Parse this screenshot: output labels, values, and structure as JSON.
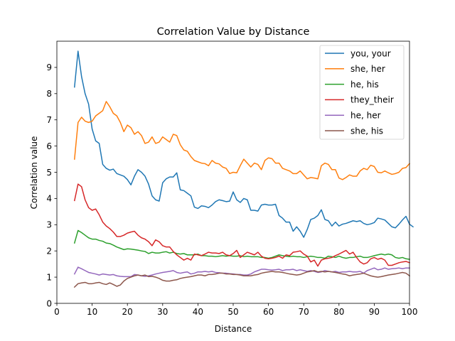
{
  "chart_data": {
    "type": "line",
    "title": "Correlation Value by Distance",
    "xlabel": "Distance",
    "ylabel": "Correlation value",
    "xlim": [
      0,
      100
    ],
    "ylim": [
      0,
      10
    ],
    "xticks": [
      0,
      10,
      20,
      30,
      40,
      50,
      60,
      70,
      80,
      90,
      100
    ],
    "yticks": [
      0,
      1,
      2,
      3,
      4,
      5,
      6,
      7,
      8,
      9
    ],
    "grid": false,
    "legend_position": "top-right",
    "x_start": 5,
    "x_step": 1,
    "series": [
      {
        "name": "you, your",
        "color": "#1f77b4",
        "values": [
          8.25,
          9.62,
          8.65,
          8.0,
          7.6,
          6.65,
          6.2,
          6.1,
          5.3,
          5.15,
          5.08,
          5.12,
          4.95,
          4.9,
          4.85,
          4.72,
          4.52,
          4.85,
          5.1,
          5.0,
          4.85,
          4.55,
          4.1,
          3.95,
          3.9,
          4.6,
          4.75,
          4.82,
          4.82,
          4.98,
          4.33,
          4.3,
          4.2,
          4.1,
          3.67,
          3.62,
          3.72,
          3.7,
          3.65,
          3.75,
          3.88,
          3.95,
          3.92,
          3.88,
          3.9,
          4.25,
          3.95,
          3.85,
          4.0,
          3.95,
          3.55,
          3.55,
          3.52,
          3.75,
          3.78,
          3.75,
          3.75,
          3.78,
          3.35,
          3.25,
          3.1,
          3.1,
          2.75,
          2.92,
          2.75,
          2.52,
          2.82,
          3.2,
          3.25,
          3.35,
          3.57,
          3.2,
          3.15,
          2.95,
          3.1,
          2.95,
          3.02,
          3.05,
          3.1,
          3.15,
          3.12,
          3.15,
          3.05,
          3.0,
          3.03,
          3.08,
          3.25,
          3.22,
          3.18,
          3.05,
          2.92,
          2.88,
          3.02,
          3.18,
          3.32,
          3.02,
          2.92
        ]
      },
      {
        "name": "she, her",
        "color": "#ff7f0e",
        "values": [
          5.5,
          6.9,
          7.1,
          6.95,
          6.9,
          6.95,
          7.15,
          7.25,
          7.35,
          7.7,
          7.5,
          7.25,
          7.15,
          6.9,
          6.55,
          6.8,
          6.7,
          6.45,
          6.55,
          6.4,
          6.1,
          6.15,
          6.35,
          6.1,
          6.15,
          6.35,
          6.25,
          6.15,
          6.45,
          6.4,
          6.05,
          5.85,
          5.8,
          5.6,
          5.45,
          5.4,
          5.35,
          5.33,
          5.25,
          5.45,
          5.35,
          5.32,
          5.2,
          5.15,
          4.95,
          5.0,
          4.98,
          5.25,
          5.5,
          5.35,
          5.2,
          5.35,
          5.3,
          5.1,
          5.45,
          5.55,
          5.52,
          5.35,
          5.35,
          5.15,
          5.1,
          5.05,
          4.95,
          4.95,
          5.05,
          4.9,
          4.75,
          4.8,
          4.78,
          4.75,
          5.25,
          5.35,
          5.3,
          5.1,
          5.1,
          4.78,
          4.72,
          4.8,
          4.9,
          4.85,
          4.85,
          5.05,
          5.15,
          5.1,
          5.27,
          5.22,
          5.0,
          4.98,
          5.05,
          4.98,
          4.92,
          4.95,
          5.0,
          5.15,
          5.18,
          5.33
        ]
      },
      {
        "name": "he, his",
        "color": "#2ca02c",
        "values": [
          2.3,
          2.78,
          2.7,
          2.6,
          2.5,
          2.45,
          2.45,
          2.4,
          2.37,
          2.3,
          2.28,
          2.22,
          2.15,
          2.1,
          2.05,
          2.08,
          2.07,
          2.05,
          2.03,
          2.0,
          1.98,
          1.9,
          1.95,
          1.92,
          1.92,
          1.95,
          1.97,
          1.92,
          1.95,
          1.9,
          1.88,
          1.9,
          1.85,
          1.85,
          1.85,
          1.88,
          1.82,
          1.82,
          1.8,
          1.8,
          1.78,
          1.8,
          1.82,
          1.8,
          1.82,
          1.8,
          1.8,
          1.82,
          1.78,
          1.8,
          1.78,
          1.78,
          1.78,
          1.75,
          1.75,
          1.72,
          1.75,
          1.8,
          1.85,
          1.82,
          1.8,
          1.78,
          1.8,
          1.78,
          1.78,
          1.75,
          1.78,
          1.8,
          1.78,
          1.75,
          1.75,
          1.72,
          1.8,
          1.78,
          1.75,
          1.8,
          1.75,
          1.72,
          1.75,
          1.75,
          1.78,
          1.8,
          1.75,
          1.75,
          1.78,
          1.82,
          1.85,
          1.88,
          1.85,
          1.88,
          1.85,
          1.75,
          1.72,
          1.75,
          1.7,
          1.68
        ]
      },
      {
        "name": "they_their",
        "color": "#d62728",
        "values": [
          3.92,
          4.55,
          4.45,
          3.95,
          3.65,
          3.55,
          3.6,
          3.38,
          3.1,
          2.95,
          2.85,
          2.72,
          2.55,
          2.55,
          2.6,
          2.68,
          2.72,
          2.75,
          2.6,
          2.5,
          2.45,
          2.35,
          2.2,
          2.42,
          2.35,
          2.2,
          2.15,
          2.15,
          1.98,
          1.85,
          1.75,
          1.65,
          1.72,
          1.65,
          1.88,
          1.85,
          1.82,
          1.88,
          1.95,
          1.92,
          1.92,
          1.9,
          1.95,
          1.85,
          1.82,
          1.9,
          2.02,
          1.75,
          1.85,
          1.95,
          1.9,
          1.85,
          1.95,
          1.8,
          1.72,
          1.7,
          1.72,
          1.75,
          1.8,
          1.72,
          1.85,
          1.82,
          1.95,
          1.97,
          2.0,
          1.88,
          1.8,
          1.58,
          1.65,
          1.42,
          1.65,
          1.7,
          1.72,
          1.75,
          1.82,
          1.88,
          1.95,
          2.02,
          1.88,
          1.95,
          1.75,
          1.58,
          1.5,
          1.55,
          1.7,
          1.75,
          1.68,
          1.72,
          1.65,
          1.45,
          1.45,
          1.5,
          1.55,
          1.58,
          1.6,
          1.55
        ]
      },
      {
        "name": "he, her",
        "color": "#9467bd",
        "values": [
          1.12,
          1.38,
          1.32,
          1.25,
          1.18,
          1.15,
          1.12,
          1.08,
          1.12,
          1.1,
          1.08,
          1.1,
          1.05,
          1.03,
          1.02,
          1.02,
          1.02,
          1.1,
          1.08,
          1.05,
          1.03,
          1.05,
          1.08,
          1.12,
          1.15,
          1.18,
          1.2,
          1.22,
          1.25,
          1.18,
          1.15,
          1.18,
          1.2,
          1.12,
          1.15,
          1.2,
          1.2,
          1.22,
          1.2,
          1.22,
          1.18,
          1.17,
          1.15,
          1.15,
          1.13,
          1.12,
          1.1,
          1.1,
          1.08,
          1.08,
          1.12,
          1.2,
          1.25,
          1.3,
          1.3,
          1.28,
          1.27,
          1.28,
          1.3,
          1.25,
          1.28,
          1.28,
          1.3,
          1.25,
          1.28,
          1.25,
          1.22,
          1.25,
          1.22,
          1.18,
          1.2,
          1.25,
          1.22,
          1.2,
          1.22,
          1.18,
          1.2,
          1.2,
          1.22,
          1.2,
          1.2,
          1.22,
          1.15,
          1.25,
          1.3,
          1.35,
          1.28,
          1.3,
          1.35,
          1.3,
          1.32,
          1.33,
          1.35,
          1.32,
          1.35,
          1.35
        ]
      },
      {
        "name": "she, his",
        "color": "#8c564b",
        "values": [
          0.62,
          0.75,
          0.78,
          0.8,
          0.75,
          0.75,
          0.78,
          0.8,
          0.75,
          0.72,
          0.78,
          0.72,
          0.65,
          0.7,
          0.85,
          0.95,
          1.0,
          1.05,
          1.08,
          1.05,
          1.08,
          1.02,
          1.03,
          1.0,
          0.95,
          0.88,
          0.85,
          0.85,
          0.88,
          0.9,
          0.95,
          0.98,
          1.0,
          1.02,
          1.05,
          1.08,
          1.08,
          1.05,
          1.1,
          1.1,
          1.12,
          1.15,
          1.15,
          1.12,
          1.12,
          1.1,
          1.1,
          1.08,
          1.05,
          1.05,
          1.05,
          1.08,
          1.1,
          1.15,
          1.18,
          1.2,
          1.22,
          1.2,
          1.2,
          1.18,
          1.15,
          1.12,
          1.1,
          1.08,
          1.1,
          1.15,
          1.2,
          1.22,
          1.25,
          1.2,
          1.22,
          1.2,
          1.22,
          1.2,
          1.18,
          1.15,
          1.12,
          1.1,
          1.05,
          1.08,
          1.1,
          1.12,
          1.15,
          1.1,
          1.05,
          1.02,
          1.0,
          1.02,
          1.05,
          1.08,
          1.1,
          1.12,
          1.15,
          1.18,
          1.15,
          1.05
        ]
      }
    ]
  }
}
